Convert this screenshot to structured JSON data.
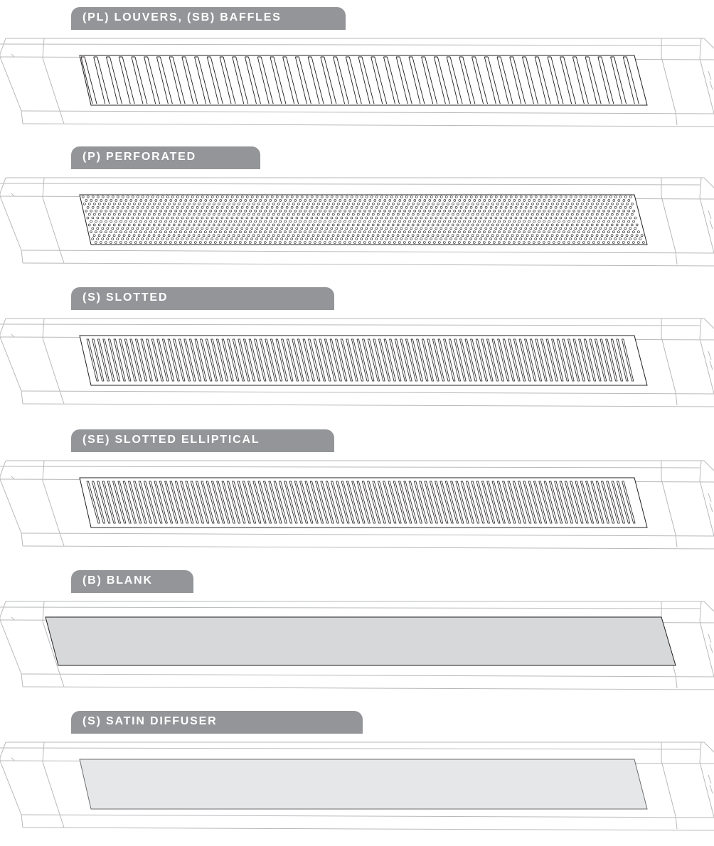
{
  "options": [
    {
      "label": "(PL) LOUVERS, (SB) BAFFLES",
      "pattern": "louvers"
    },
    {
      "label": "(P) PERFORATED",
      "pattern": "perforated"
    },
    {
      "label": "(S) SLOTTED",
      "pattern": "slotted"
    },
    {
      "label": "(SE) SLOTTED ELLIPTICAL",
      "pattern": "slotted-elliptical"
    },
    {
      "label": "(B) BLANK",
      "pattern": "blank"
    },
    {
      "label": "(S) SATIN DIFFUSER",
      "pattern": "satin-diffuser"
    }
  ],
  "colors": {
    "tab": "#939598",
    "tab_text": "#ffffff",
    "outline": "#b7b9bb",
    "panel_stroke": "#231f20",
    "blank_fill": "#d7d8da",
    "satin_fill": "#e6e7e8"
  }
}
